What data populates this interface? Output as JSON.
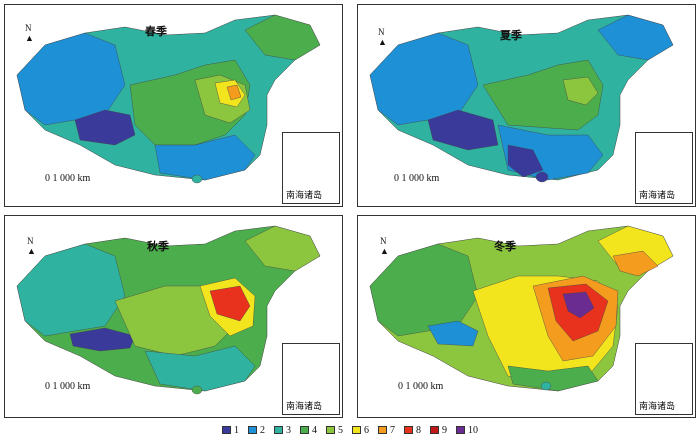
{
  "panels": [
    {
      "title": "春季",
      "scale_label": "0    1 000 km",
      "inset_label": "南海诸岛",
      "north_label": "N",
      "season": "spring"
    },
    {
      "title": "夏季",
      "scale_label": "0    1 000 km",
      "inset_label": "南海诸岛",
      "north_label": "N",
      "season": "summer"
    },
    {
      "title": "秋季",
      "scale_label": "0    1 000 km",
      "inset_label": "南海诸岛",
      "north_label": "N",
      "season": "autumn"
    },
    {
      "title": "冬季",
      "scale_label": "0    1 000 km",
      "inset_label": "南海诸岛",
      "north_label": "N",
      "season": "winter"
    }
  ],
  "legend": [
    {
      "label": "1",
      "color": "#3a3a9a"
    },
    {
      "label": "2",
      "color": "#1e90d6"
    },
    {
      "label": "3",
      "color": "#2fb3a0"
    },
    {
      "label": "4",
      "color": "#4cad4c"
    },
    {
      "label": "5",
      "color": "#8cc63f"
    },
    {
      "label": "6",
      "color": "#f2e51e"
    },
    {
      "label": "7",
      "color": "#f39c1e"
    },
    {
      "label": "8",
      "color": "#e8321e"
    },
    {
      "label": "9",
      "color": "#c21818"
    },
    {
      "label": "10",
      "color": "#6a2c91"
    }
  ]
}
